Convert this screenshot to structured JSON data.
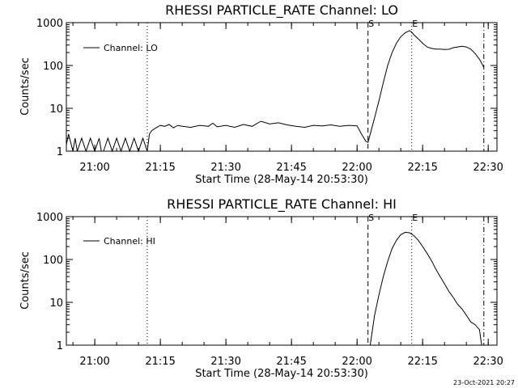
{
  "timestamp": "23-Oct-2021 20:27",
  "chart_data": [
    {
      "type": "line",
      "title": "RHESSI PARTICLE_RATE Channel: LO",
      "xlabel": "Start Time (28-May-14 20:53:30)",
      "ylabel": "Counts/sec",
      "yscale": "log",
      "ylim": [
        1,
        1000
      ],
      "xlim": [
        "20:53:30",
        "22:32:00"
      ],
      "x_ticks": [
        "21:00",
        "21:15",
        "21:30",
        "21:45",
        "22:00",
        "22:15",
        "22:30"
      ],
      "y_ticks": [
        "1",
        "10",
        "100",
        "1000"
      ],
      "grid": false,
      "legend": "top-left",
      "markers": [
        {
          "time": "21:12:00",
          "label": "",
          "style": "dotted"
        },
        {
          "time": "22:02:30",
          "label": "S",
          "style": "dashed"
        },
        {
          "time": "22:12:30",
          "label": "E",
          "style": "dotted"
        },
        {
          "time": "22:29:00",
          "label": "",
          "style": "dash-dot"
        }
      ],
      "series": [
        {
          "name": "Channel: LO",
          "x": [
            "20:53:30",
            "20:54:00",
            "20:55:00",
            "20:55:30",
            "20:56:00",
            "20:57:00",
            "20:58:00",
            "20:59:00",
            "21:00:00",
            "21:01:00",
            "21:01:30",
            "21:02:00",
            "21:03:00",
            "21:04:00",
            "21:05:00",
            "21:06:00",
            "21:07:00",
            "21:08:00",
            "21:09:00",
            "21:10:00",
            "21:11:00",
            "21:12:00",
            "21:12:30",
            "21:13:00",
            "21:14:00",
            "21:15:00",
            "21:16:00",
            "21:17:00",
            "21:18:00",
            "21:19:00",
            "21:20:00",
            "21:22:00",
            "21:24:00",
            "21:26:00",
            "21:27:00",
            "21:28:00",
            "21:30:00",
            "21:32:00",
            "21:34:00",
            "21:36:00",
            "21:38:00",
            "21:40:00",
            "21:42:00",
            "21:44:00",
            "21:46:00",
            "21:48:00",
            "21:50:00",
            "21:52:00",
            "21:54:00",
            "21:56:00",
            "21:58:00",
            "22:00:00",
            "22:01:00",
            "22:02:00",
            "22:02:30",
            "22:03:00",
            "22:04:00",
            "22:05:00",
            "22:06:00",
            "22:07:00",
            "22:08:00",
            "22:09:00",
            "22:10:00",
            "22:11:00",
            "22:12:00",
            "22:12:30",
            "22:13:00",
            "22:14:00",
            "22:15:00",
            "22:16:00",
            "22:17:00",
            "22:18:00",
            "22:19:00",
            "22:20:00",
            "22:21:00",
            "22:22:00",
            "22:23:00",
            "22:24:00",
            "22:25:00",
            "22:26:00",
            "22:27:00",
            "22:28:00",
            "22:29:00"
          ],
          "values": [
            1.4,
            2.5,
            1,
            2,
            1,
            2,
            1,
            2,
            1,
            2,
            1,
            1,
            2,
            1,
            2,
            1,
            2,
            1,
            2,
            1,
            2,
            1,
            2.5,
            3,
            3.5,
            4,
            3.8,
            4.2,
            3.5,
            4,
            3.8,
            3.6,
            4,
            3.8,
            4.5,
            3.7,
            4,
            3.6,
            4.2,
            3.8,
            5,
            4.3,
            4.6,
            4.1,
            3.8,
            3.6,
            4,
            3.9,
            4.1,
            3.8,
            4,
            3.9,
            2.5,
            1.7,
            1.6,
            2.5,
            6,
            15,
            40,
            100,
            200,
            330,
            470,
            580,
            650,
            600,
            520,
            420,
            330,
            270,
            250,
            240,
            240,
            235,
            238,
            260,
            270,
            280,
            270,
            240,
            190,
            140,
            90
          ]
        }
      ]
    },
    {
      "type": "line",
      "title": "RHESSI PARTICLE_RATE Channel: HI",
      "xlabel": "Start Time (28-May-14 20:53:30)",
      "ylabel": "Counts/sec",
      "yscale": "log",
      "ylim": [
        1,
        1000
      ],
      "xlim": [
        "20:53:30",
        "22:32:00"
      ],
      "x_ticks": [
        "21:00",
        "21:15",
        "21:30",
        "21:45",
        "22:00",
        "22:15",
        "22:30"
      ],
      "y_ticks": [
        "1",
        "10",
        "100",
        "1000"
      ],
      "grid": false,
      "legend": "top-left",
      "markers": [
        {
          "time": "21:12:00",
          "label": "",
          "style": "dotted"
        },
        {
          "time": "22:02:30",
          "label": "S",
          "style": "dashed"
        },
        {
          "time": "22:12:30",
          "label": "E",
          "style": "dotted"
        },
        {
          "time": "22:29:00",
          "label": "",
          "style": "dash-dot"
        }
      ],
      "series": [
        {
          "name": "Channel: HI",
          "x": [
            "22:03:00",
            "22:04:00",
            "22:05:00",
            "22:06:00",
            "22:07:00",
            "22:08:00",
            "22:09:00",
            "22:10:00",
            "22:11:00",
            "22:12:00",
            "22:13:00",
            "22:14:00",
            "22:15:00",
            "22:16:00",
            "22:17:00",
            "22:18:00",
            "22:19:00",
            "22:20:00",
            "22:21:00",
            "22:22:00",
            "22:23:00",
            "22:24:00",
            "22:25:00",
            "22:26:00",
            "22:27:00",
            "22:28:00",
            "22:28:30"
          ],
          "values": [
            1,
            5,
            15,
            40,
            90,
            180,
            280,
            380,
            430,
            420,
            360,
            280,
            200,
            140,
            95,
            60,
            40,
            27,
            18,
            13,
            9,
            7,
            5,
            3.5,
            3,
            2.3,
            1
          ]
        }
      ]
    }
  ]
}
